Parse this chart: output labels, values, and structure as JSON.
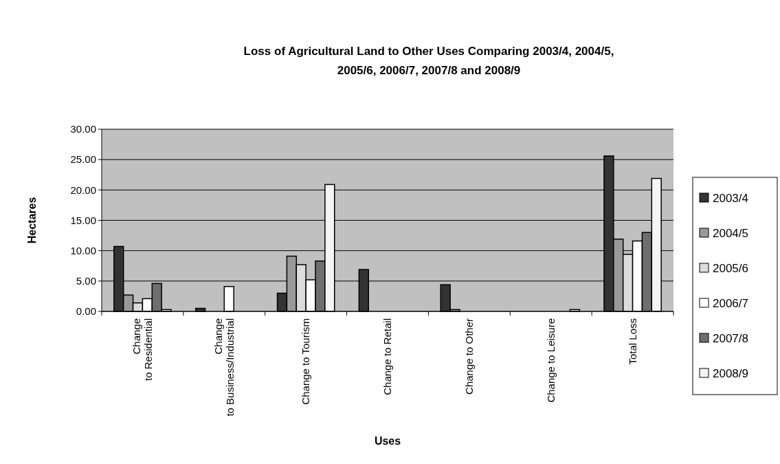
{
  "chart_data": {
    "type": "bar",
    "title": "Loss of Agricultural Land to Other Uses Comparing 2003/4, 2004/5, 2005/6, 2006/7, 2007/8 and 2008/9",
    "xlabel": "Uses",
    "ylabel": "Hectares",
    "categories": [
      "Change to Residential",
      "Change to Business/Industrial",
      "Change to Tourism",
      "Change to Retail",
      "Change to Other",
      "Change to Leisure",
      "Total Loss"
    ],
    "series": [
      {
        "name": "2003/4",
        "color": "#333333",
        "values": [
          10.7,
          0.5,
          3.0,
          6.9,
          4.4,
          null,
          25.6
        ]
      },
      {
        "name": "2004/5",
        "color": "#999999",
        "values": [
          2.7,
          null,
          9.1,
          null,
          0.3,
          null,
          11.9
        ]
      },
      {
        "name": "2005/6",
        "color": "#dcdcdc",
        "values": [
          1.4,
          null,
          7.7,
          null,
          null,
          null,
          9.4
        ]
      },
      {
        "name": "2006/7",
        "color": "#ffffff",
        "values": [
          2.1,
          4.1,
          5.2,
          null,
          null,
          null,
          11.6
        ]
      },
      {
        "name": "2007/8",
        "color": "#6e6e6e",
        "values": [
          4.6,
          null,
          8.3,
          null,
          null,
          null,
          13.0
        ]
      },
      {
        "name": "2008/9",
        "color": "#f4f4f4",
        "values": [
          0.3,
          null,
          20.9,
          null,
          null,
          0.3,
          21.9
        ]
      }
    ],
    "ylim": [
      0,
      30
    ],
    "yticks": [
      {
        "value": 0,
        "label": "0.00"
      },
      {
        "value": 5,
        "label": "5.00"
      },
      {
        "value": 10,
        "label": "10.00"
      },
      {
        "value": 15,
        "label": "15.00"
      },
      {
        "value": 20,
        "label": "20.00"
      },
      {
        "value": 25,
        "label": "25.00"
      },
      {
        "value": 30,
        "label": "30.00"
      }
    ],
    "grid": "y",
    "legend": "right"
  }
}
